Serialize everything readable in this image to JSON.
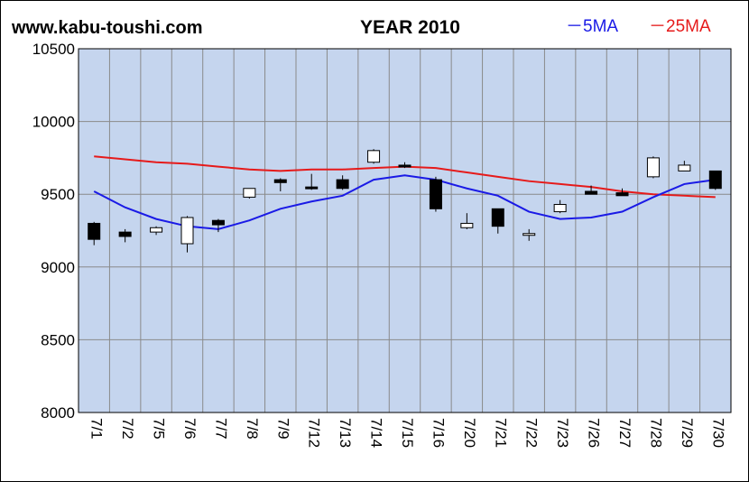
{
  "header": {
    "site": "www.kabu-toushi.com",
    "title": "YEAR 2010",
    "legend_ma5": "－5MA",
    "legend_ma25": "－25MA"
  },
  "colors": {
    "plot_bg": "#c5d5ee",
    "grid": "#8a8a8a",
    "ma5": "#1a1ae6",
    "ma25": "#e61a1a",
    "candle_up": "#ffffff",
    "candle_down": "#000000"
  },
  "chart_data": {
    "type": "candlestick",
    "title": "YEAR 2010",
    "ylim": [
      8000,
      10500
    ],
    "yticks": [
      8000,
      8500,
      9000,
      9500,
      10000,
      10500
    ],
    "grid": true,
    "legend_position": "top-right",
    "categories": [
      "7/1",
      "7/2",
      "7/5",
      "7/6",
      "7/7",
      "7/8",
      "7/9",
      "7/12",
      "7/13",
      "7/14",
      "7/15",
      "7/16",
      "7/20",
      "7/21",
      "7/22",
      "7/23",
      "7/26",
      "7/27",
      "7/28",
      "7/29",
      "7/30"
    ],
    "candles": [
      {
        "o": 9300,
        "h": 9310,
        "l": 9150,
        "c": 9190
      },
      {
        "o": 9240,
        "h": 9260,
        "l": 9170,
        "c": 9210
      },
      {
        "o": 9240,
        "h": 9280,
        "l": 9220,
        "c": 9270
      },
      {
        "o": 9160,
        "h": 9350,
        "l": 9100,
        "c": 9340
      },
      {
        "o": 9320,
        "h": 9330,
        "l": 9240,
        "c": 9290
      },
      {
        "o": 9480,
        "h": 9540,
        "l": 9470,
        "c": 9540
      },
      {
        "o": 9600,
        "h": 9610,
        "l": 9520,
        "c": 9580
      },
      {
        "o": 9550,
        "h": 9640,
        "l": 9530,
        "c": 9540
      },
      {
        "o": 9600,
        "h": 9630,
        "l": 9530,
        "c": 9540
      },
      {
        "o": 9720,
        "h": 9810,
        "l": 9710,
        "c": 9800
      },
      {
        "o": 9700,
        "h": 9720,
        "l": 9680,
        "c": 9690
      },
      {
        "o": 9600,
        "h": 9620,
        "l": 9380,
        "c": 9400
      },
      {
        "o": 9270,
        "h": 9370,
        "l": 9260,
        "c": 9300
      },
      {
        "o": 9400,
        "h": 9400,
        "l": 9230,
        "c": 9280
      },
      {
        "o": 9220,
        "h": 9260,
        "l": 9180,
        "c": 9230
      },
      {
        "o": 9380,
        "h": 9460,
        "l": 9370,
        "c": 9430
      },
      {
        "o": 9520,
        "h": 9560,
        "l": 9500,
        "c": 9500
      },
      {
        "o": 9510,
        "h": 9540,
        "l": 9490,
        "c": 9490
      },
      {
        "o": 9620,
        "h": 9760,
        "l": 9610,
        "c": 9750
      },
      {
        "o": 9660,
        "h": 9730,
        "l": 9660,
        "c": 9700
      },
      {
        "o": 9660,
        "h": 9660,
        "l": 9530,
        "c": 9540
      }
    ],
    "series": [
      {
        "name": "5MA",
        "values": [
          9520,
          9410,
          9330,
          9280,
          9260,
          9320,
          9400,
          9450,
          9490,
          9600,
          9630,
          9600,
          9540,
          9490,
          9380,
          9330,
          9340,
          9380,
          9480,
          9570,
          9600
        ]
      },
      {
        "name": "25MA",
        "values": [
          9760,
          9740,
          9720,
          9710,
          9690,
          9670,
          9660,
          9670,
          9670,
          9680,
          9690,
          9680,
          9650,
          9620,
          9590,
          9570,
          9550,
          9520,
          9500,
          9490,
          9480
        ]
      }
    ]
  }
}
